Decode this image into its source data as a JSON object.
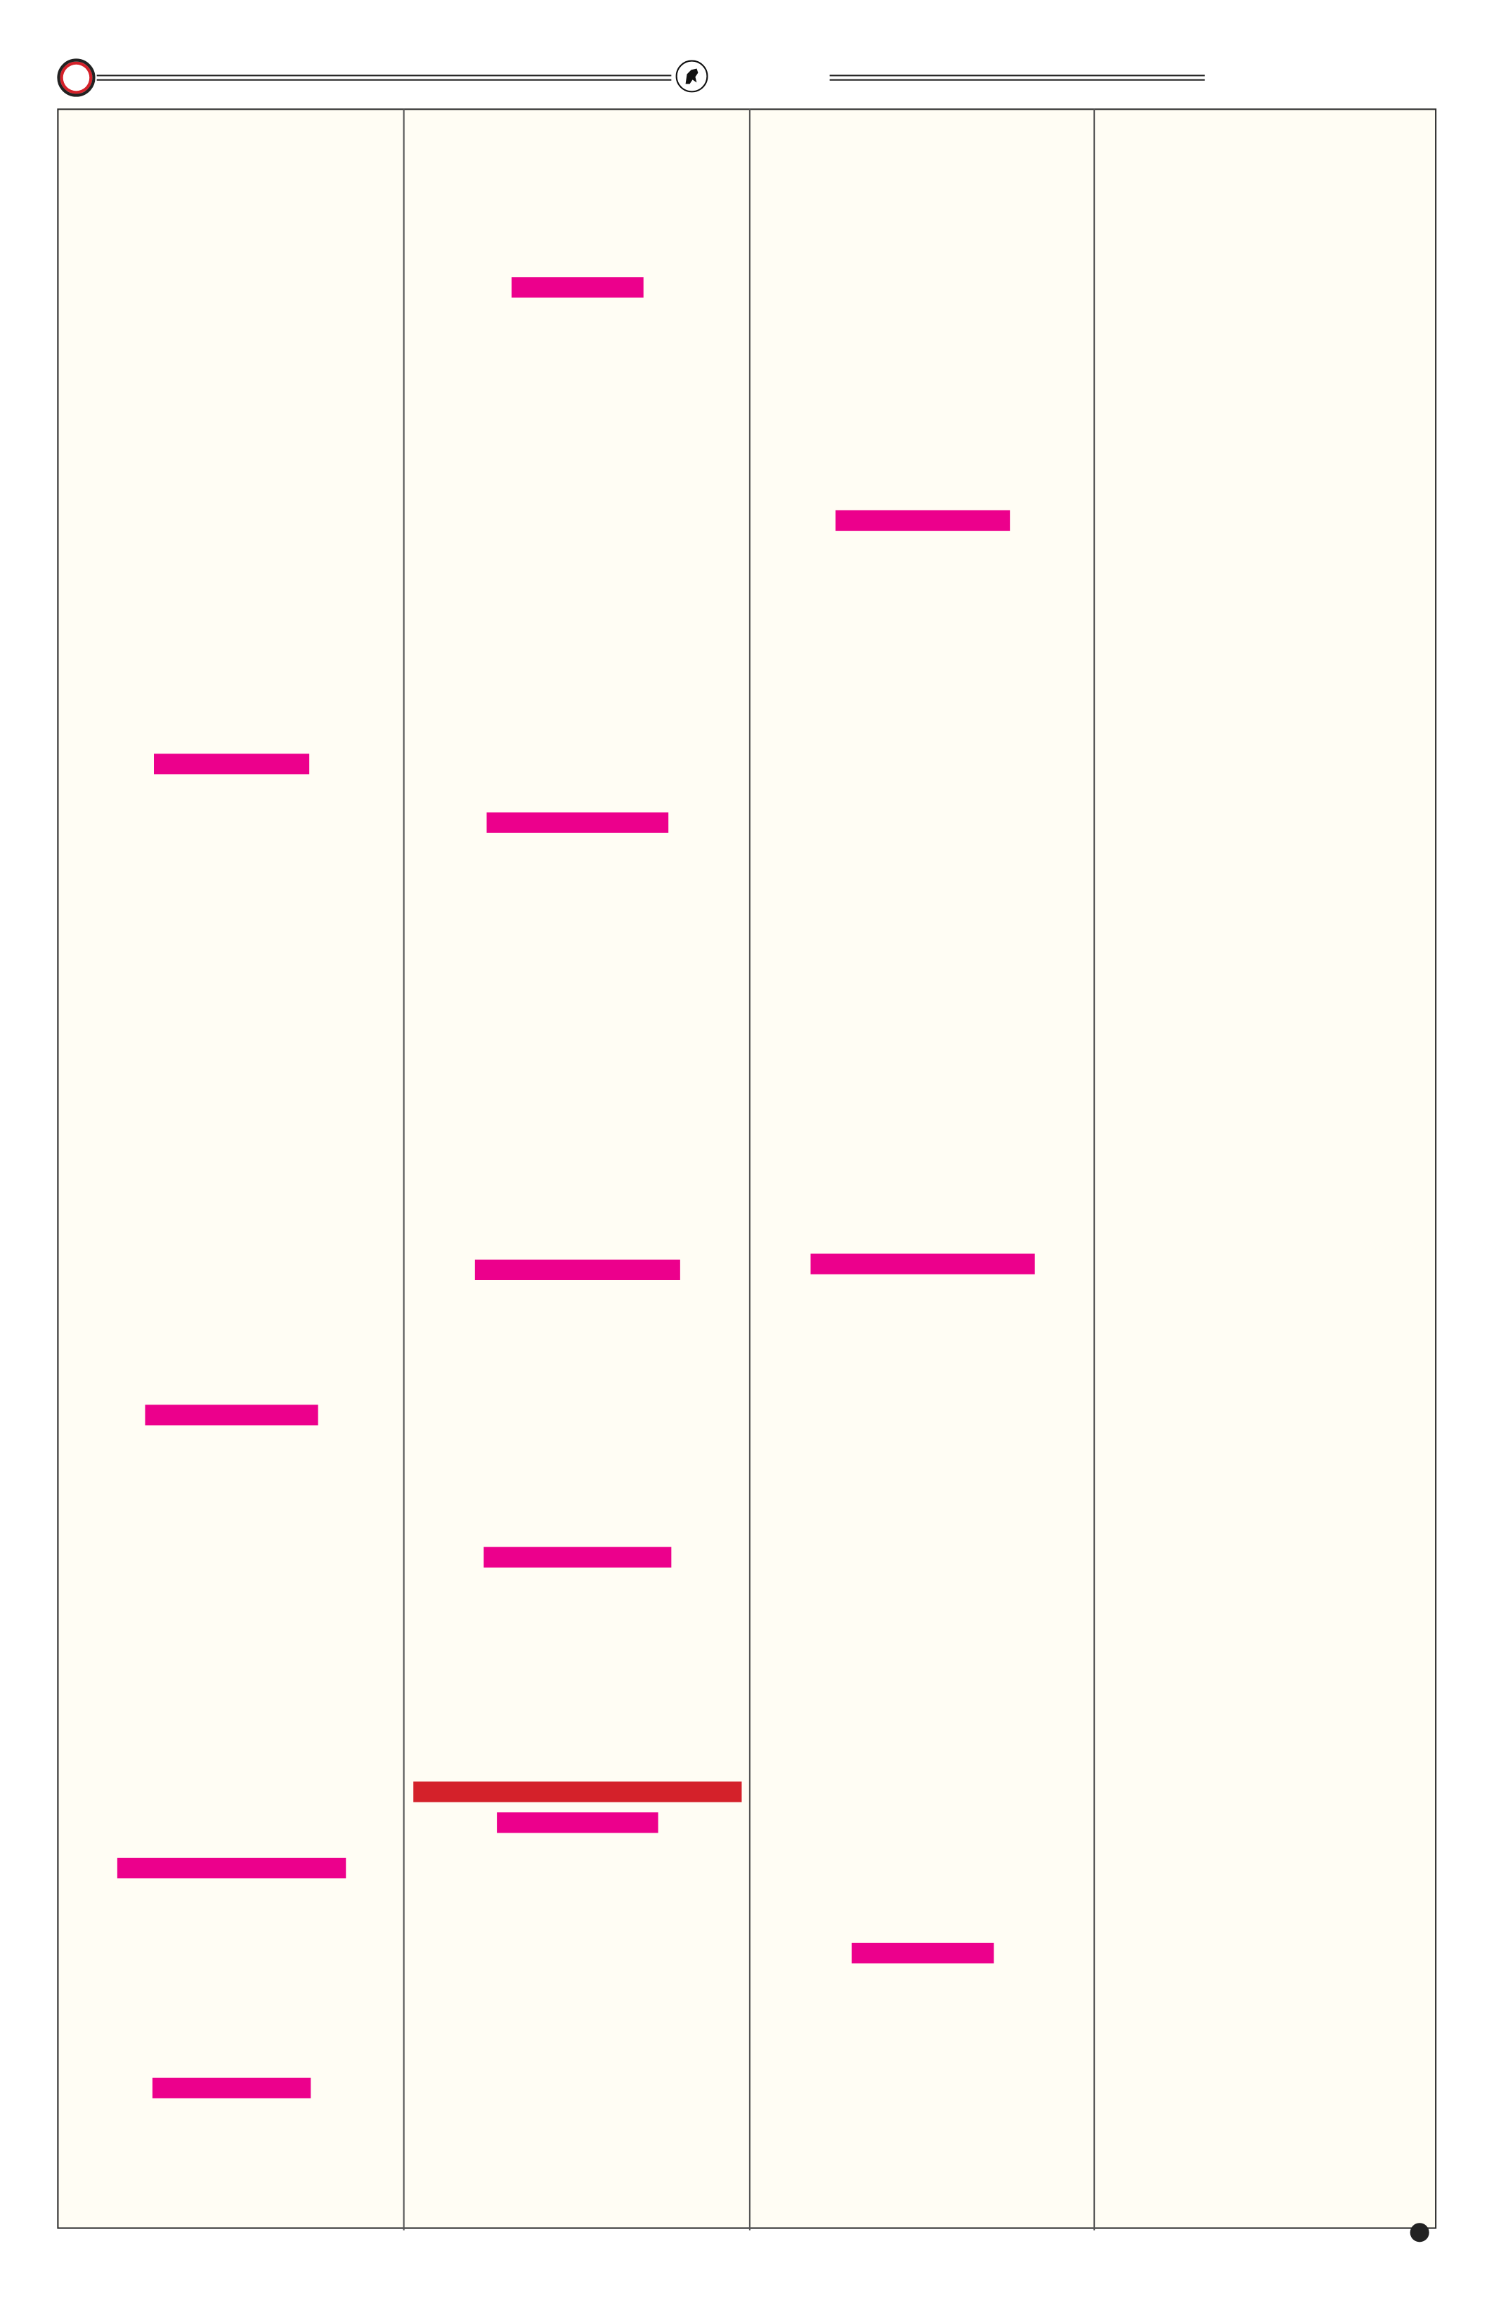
{
  "colors": {
    "background": "#fffdf4",
    "highlight": "#ec008c",
    "accent_red": "#d4212a",
    "rule": "#222222"
  },
  "header": {
    "left_badge_icon": "ring-icon",
    "emblem_icon": "emblem-icon"
  },
  "columns": [
    {
      "bars": [
        {
          "color": "highlight"
        },
        {
          "color": "highlight"
        },
        {
          "color": "highlight"
        },
        {
          "color": "highlight"
        }
      ]
    },
    {
      "bars": [
        {
          "color": "highlight"
        },
        {
          "color": "highlight"
        },
        {
          "color": "highlight"
        },
        {
          "color": "highlight"
        },
        {
          "color": "accent_red"
        },
        {
          "color": "highlight"
        }
      ]
    },
    {
      "bars": [
        {
          "color": "highlight"
        },
        {
          "color": "highlight"
        },
        {
          "color": "highlight"
        }
      ]
    },
    {
      "bars": []
    }
  ],
  "footer": {
    "page_marker_icon": "dot-icon"
  }
}
